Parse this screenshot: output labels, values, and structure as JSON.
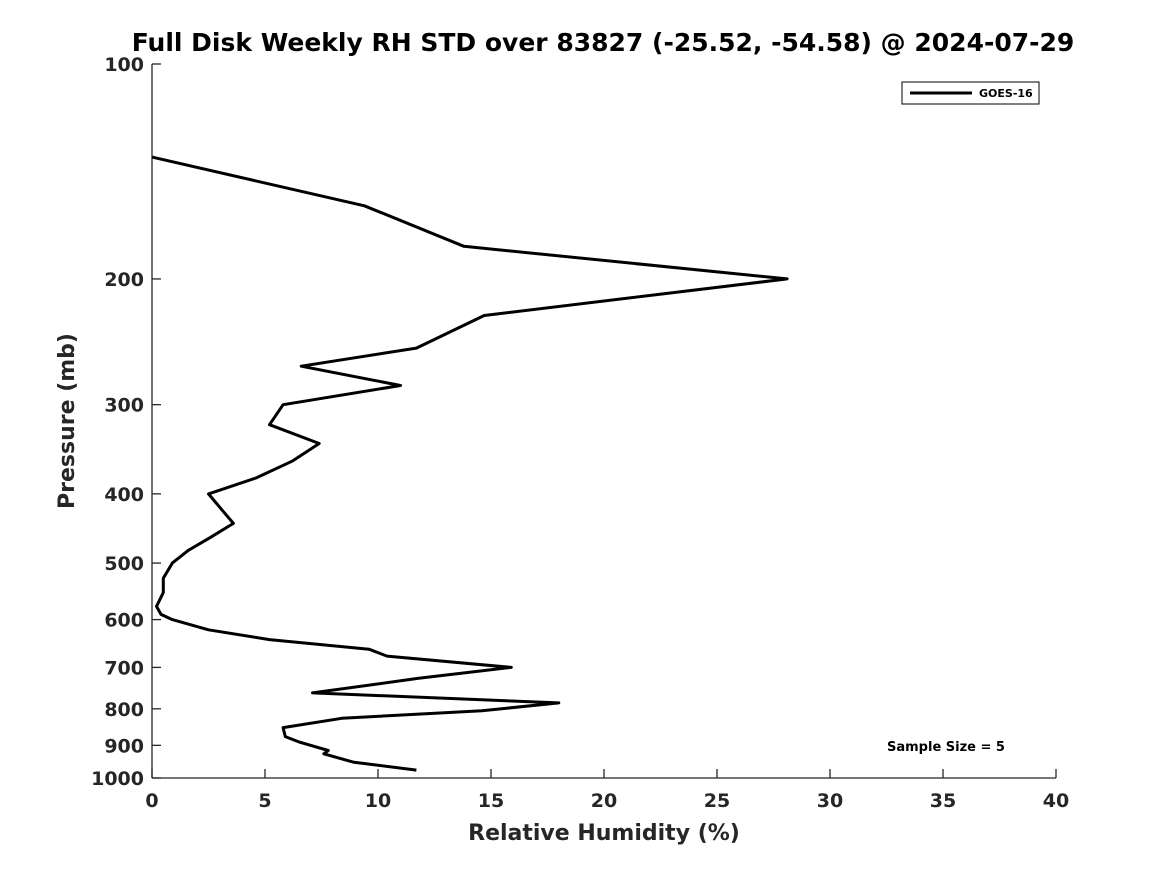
{
  "chart_data": {
    "type": "line",
    "title": "Full Disk Weekly RH STD over 83827 (-25.52, -54.58) @ 2024-07-29",
    "xlabel": "Relative Humidity (%)",
    "ylabel": "Pressure (mb)",
    "xlim": [
      0,
      40
    ],
    "ylim": [
      100,
      1000
    ],
    "y_scale": "log",
    "y_inverted": true,
    "grid": false,
    "x_ticks": [
      0,
      5,
      10,
      15,
      20,
      25,
      30,
      35,
      40
    ],
    "y_ticks": [
      100,
      200,
      300,
      400,
      500,
      600,
      700,
      800,
      900,
      1000
    ],
    "legend": {
      "placement": "top-right",
      "entries": [
        "GOES-16"
      ]
    },
    "annotation": "Sample Size = 5",
    "series": [
      {
        "name": "GOES-16",
        "color": "#000000",
        "points": [
          [
            0.0,
            135
          ],
          [
            9.4,
            158
          ],
          [
            13.8,
            180
          ],
          [
            28.1,
            200
          ],
          [
            14.7,
            225
          ],
          [
            11.7,
            250
          ],
          [
            6.6,
            265
          ],
          [
            11.0,
            282
          ],
          [
            5.8,
            300
          ],
          [
            5.2,
            320
          ],
          [
            7.4,
            340
          ],
          [
            6.2,
            360
          ],
          [
            4.6,
            380
          ],
          [
            2.5,
            400
          ],
          [
            3.2,
            425
          ],
          [
            3.6,
            440
          ],
          [
            2.6,
            460
          ],
          [
            1.6,
            480
          ],
          [
            0.9,
            500
          ],
          [
            0.5,
            525
          ],
          [
            0.5,
            550
          ],
          [
            0.2,
            575
          ],
          [
            0.4,
            590
          ],
          [
            0.9,
            600
          ],
          [
            2.5,
            620
          ],
          [
            5.2,
            640
          ],
          [
            9.6,
            660
          ],
          [
            10.4,
            675
          ],
          [
            15.9,
            700
          ],
          [
            11.8,
            725
          ],
          [
            7.1,
            760
          ],
          [
            18.0,
            785
          ],
          [
            14.6,
            805
          ],
          [
            8.4,
            825
          ],
          [
            5.8,
            850
          ],
          [
            5.9,
            875
          ],
          [
            6.5,
            890
          ],
          [
            7.8,
            915
          ],
          [
            7.6,
            925
          ],
          [
            8.9,
            950
          ],
          [
            11.7,
            975
          ]
        ]
      }
    ]
  }
}
